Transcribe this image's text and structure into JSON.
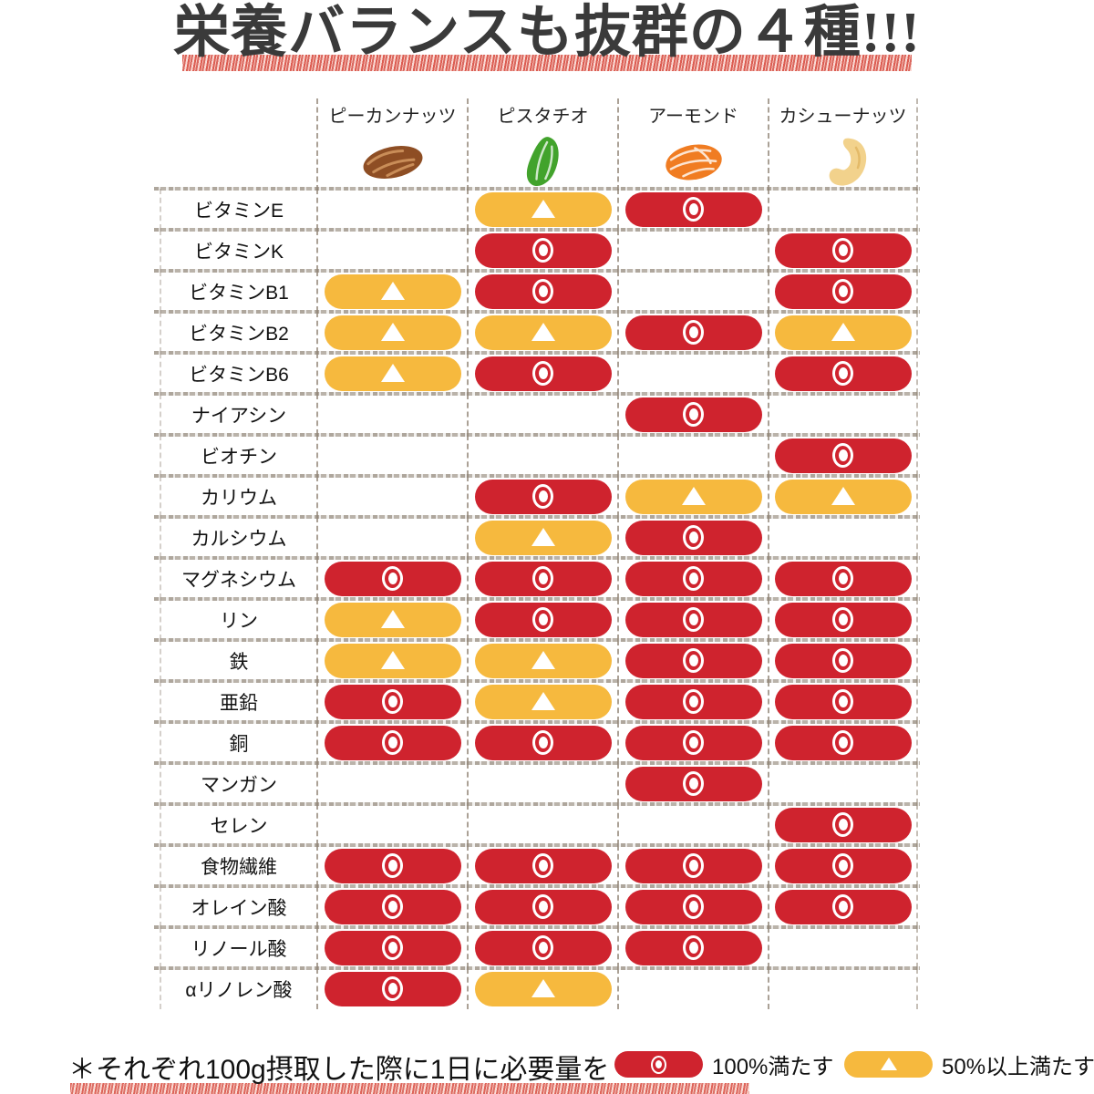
{
  "title": "栄養バランスも抜群の４種!!!",
  "columns": [
    {
      "label": "ピーカンナッツ",
      "icon": "pecan-icon",
      "color": "#8e4e24"
    },
    {
      "label": "ピスタチオ",
      "icon": "pistachio-icon",
      "color": "#42a32c"
    },
    {
      "label": "アーモンド",
      "icon": "almond-icon",
      "color": "#f07c22"
    },
    {
      "label": "カシューナッツ",
      "icon": "cashew-icon",
      "color": "#f2d28c"
    }
  ],
  "footnote": "＊それぞれ100g摂取した際に1日に必要量を",
  "legend": [
    {
      "symbol": "◎",
      "label": "100%満たす",
      "color": "#cf232e"
    },
    {
      "symbol": "▲",
      "label": "50%以上満たす",
      "color": "#f6b93e"
    }
  ],
  "colors": {
    "meets_100": "#cf232e",
    "meets_50_plus": "#f6b93e",
    "grid_line": "#968a7c",
    "underline_red": "#d6423.6"
  },
  "chart_data": {
    "type": "table",
    "title": "栄養バランスも抜群の４種!!!",
    "columns": [
      "ピーカンナッツ",
      "ピスタチオ",
      "アーモンド",
      "カシューナッツ"
    ],
    "rows": [
      "ビタミンE",
      "ビタミンK",
      "ビタミンB1",
      "ビタミンB2",
      "ビタミンB6",
      "ナイアシン",
      "ビオチン",
      "カリウム",
      "カルシウム",
      "マグネシウム",
      "リン",
      "鉄",
      "亜鉛",
      "銅",
      "マンガン",
      "セレン",
      "食物繊維",
      "オレイン酸",
      "リノール酸",
      "αリノレン酸"
    ],
    "values": [
      [
        "",
        "▲",
        "◎",
        ""
      ],
      [
        "",
        "◎",
        "",
        "◎"
      ],
      [
        "▲",
        "◎",
        "",
        "◎"
      ],
      [
        "▲",
        "▲",
        "◎",
        "▲"
      ],
      [
        "▲",
        "◎",
        "",
        "◎"
      ],
      [
        "",
        "",
        "◎",
        ""
      ],
      [
        "",
        "",
        "",
        "◎"
      ],
      [
        "",
        "◎",
        "▲",
        "▲"
      ],
      [
        "",
        "▲",
        "◎",
        ""
      ],
      [
        "◎",
        "◎",
        "◎",
        "◎"
      ],
      [
        "▲",
        "◎",
        "◎",
        "◎"
      ],
      [
        "▲",
        "▲",
        "◎",
        "◎"
      ],
      [
        "◎",
        "▲",
        "◎",
        "◎"
      ],
      [
        "◎",
        "◎",
        "◎",
        "◎"
      ],
      [
        "",
        "",
        "◎",
        ""
      ],
      [
        "",
        "",
        "",
        "◎"
      ],
      [
        "◎",
        "◎",
        "◎",
        "◎"
      ],
      [
        "◎",
        "◎",
        "◎",
        "◎"
      ],
      [
        "◎",
        "◎",
        "◎",
        ""
      ],
      [
        "◎",
        "▲",
        "",
        ""
      ]
    ],
    "legend": {
      "◎": "100%満たす",
      "▲": "50%以上満たす"
    },
    "note": "＊それぞれ100g摂取した際に1日に必要量を"
  }
}
